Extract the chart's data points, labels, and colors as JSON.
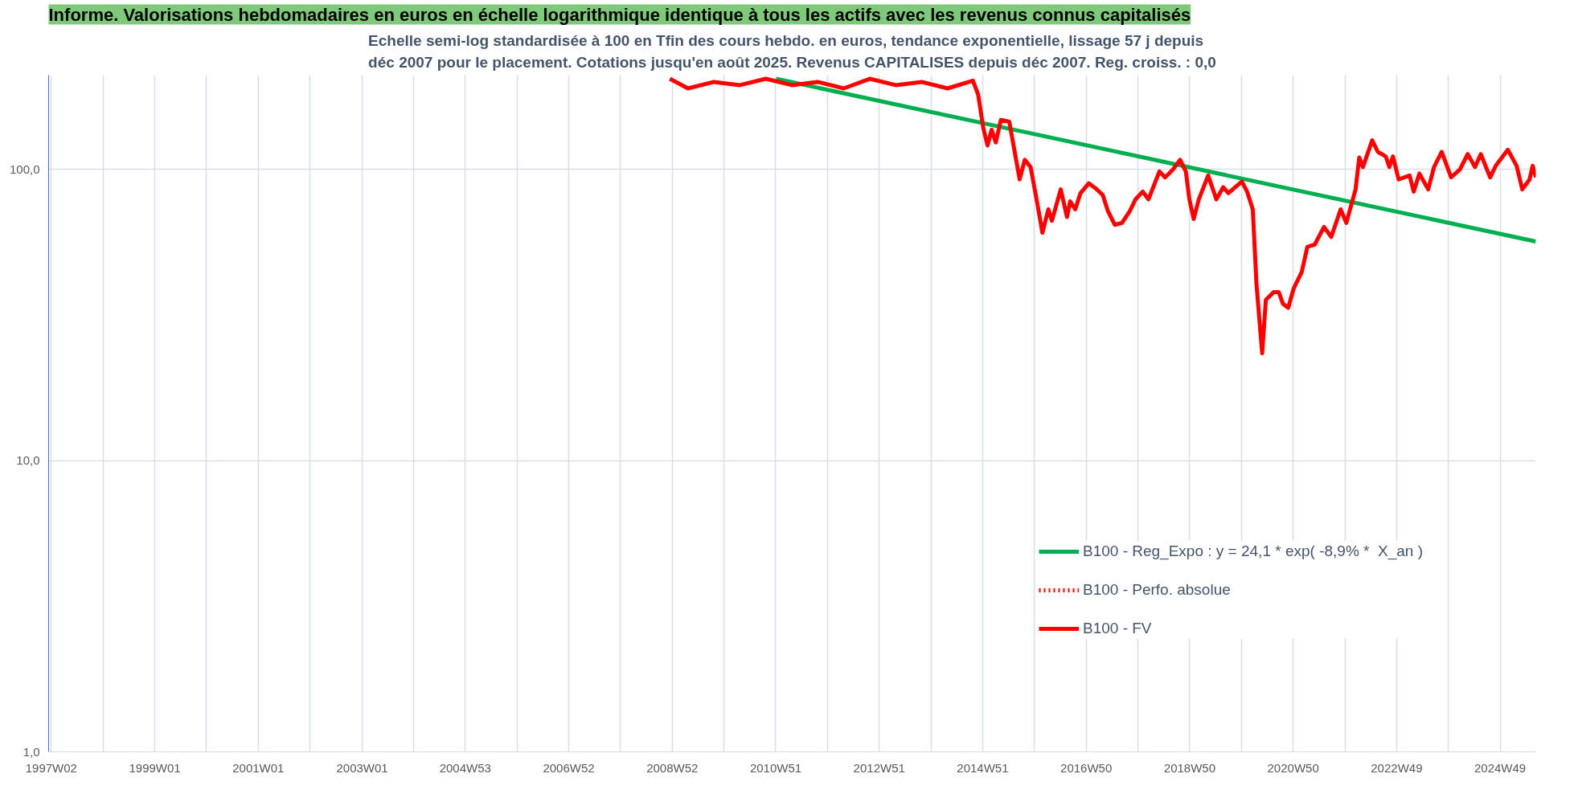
{
  "chart_data": {
    "type": "line",
    "title": "Informe. Valorisations hebdomadaires en euros en échelle logarithmique identique à tous les actifs avec les revenus connus capitalisés",
    "subtitle": "Echelle semi-log standardisée à 100 en Tfin des cours hebdo. en euros, tendance exponentielle, lissage 57 j depuis déc 2007 pour le placement. Cotations jusqu'en août 2025. Revenus CAPITALISES depuis déc 2007. Reg. croiss. : 0,0",
    "log": true,
    "grid": true,
    "legend": "bottom right",
    "xlim": [
      "1996-12-18",
      "2025-08-10"
    ],
    "xticks": [
      {
        "value": "1997-01-06",
        "label": "1997W02"
      },
      {
        "value": "1998-01-05",
        "label": null
      },
      {
        "value": "1999-01-04",
        "label": "1999W01"
      },
      {
        "value": "2000-01-03",
        "label": null
      },
      {
        "value": "2001-01-01",
        "label": "2001W01"
      },
      {
        "value": "2001-12-31",
        "label": null
      },
      {
        "value": "2003-01-02",
        "label": "2003W01"
      },
      {
        "value": "2003-12-29",
        "label": null
      },
      {
        "value": "2004-12-27",
        "label": "2004W53"
      },
      {
        "value": "2005-12-26",
        "label": null
      },
      {
        "value": "2006-12-25",
        "label": "2006W52"
      },
      {
        "value": "2007-12-24",
        "label": null
      },
      {
        "value": "2008-12-22",
        "label": "2008W52"
      },
      {
        "value": "2009-12-21",
        "label": null
      },
      {
        "value": "2010-12-20",
        "label": "2010W51"
      },
      {
        "value": "2011-12-19",
        "label": null
      },
      {
        "value": "2012-12-17",
        "label": "2012W51"
      },
      {
        "value": "2013-12-16",
        "label": null
      },
      {
        "value": "2014-12-15",
        "label": "2014W51"
      },
      {
        "value": "2015-12-14",
        "label": null
      },
      {
        "value": "2016-12-12",
        "label": "2016W50"
      },
      {
        "value": "2017-12-11",
        "label": null
      },
      {
        "value": "2018-12-10",
        "label": "2018W50"
      },
      {
        "value": "2019-12-09",
        "label": null
      },
      {
        "value": "2020-12-07",
        "label": "2020W50"
      },
      {
        "value": "2021-12-06",
        "label": null
      },
      {
        "value": "2022-12-05",
        "label": "2022W49"
      },
      {
        "value": "2023-12-04",
        "label": null
      },
      {
        "value": "2024-12-02",
        "label": "2024W49"
      }
    ],
    "ylim": [
      1,
      211
    ],
    "yticks": [
      {
        "value": 1,
        "label": "1,0"
      },
      {
        "value": 10,
        "label": "10,0"
      },
      {
        "value": 100,
        "label": "100,0"
      }
    ],
    "series": [
      {
        "name": "B100 - Reg_Expo : y = 24,1 * exp( -8,9% *  X_an )",
        "color": "#00b050",
        "line_style": "solid",
        "x": [
          "2010-12-23",
          "2025-08-10"
        ],
        "values": [
          205,
          56.6
        ]
      },
      {
        "name": "B100 - Perfo. absolue",
        "color": "#ff0000",
        "line_style": "dotted"
      },
      {
        "name": "B100 - FV",
        "color": "#ff0000",
        "line_style": "solid",
        "x": [
          "2008-12-05",
          "2009-04-12",
          "2009-10-11",
          "2010-04-12",
          "2010-10-11",
          "2011-04-12",
          "2011-10-11",
          "2012-04-12",
          "2012-10-11",
          "2013-04-12",
          "2013-10-11",
          "2014-04-12",
          "2014-10-07",
          "2014-11-13",
          "2014-12-19",
          "2015-01-18",
          "2015-02-16",
          "2015-03-17",
          "2015-04-22",
          "2015-06-20",
          "2015-09-01",
          "2015-10-07",
          "2015-11-17",
          "2015-12-27",
          "2016-02-08",
          "2016-03-21",
          "2016-04-15",
          "2016-06-16",
          "2016-07-30",
          "2016-08-21",
          "2016-09-26",
          "2016-11-02",
          "2016-12-30",
          "2017-02-19",
          "2017-04-08",
          "2017-05-14",
          "2017-07-01",
          "2017-08-21",
          "2017-10-15",
          "2017-11-24",
          "2018-01-14",
          "2018-02-23",
          "2018-05-11",
          "2018-06-20",
          "2018-08-14",
          "2018-10-04",
          "2018-11-13",
          "2018-12-08",
          "2019-01-07",
          "2019-02-12",
          "2019-04-19",
          "2019-06-16",
          "2019-08-03",
          "2019-09-08",
          "2019-12-12",
          "2020-01-18",
          "2020-02-27",
          "2020-03-24",
          "2020-05-03",
          "2020-05-29",
          "2020-07-23",
          "2020-08-28",
          "2020-09-26",
          "2020-11-02",
          "2020-12-12",
          "2021-02-05",
          "2021-03-17",
          "2021-05-07",
          "2021-07-12",
          "2021-09-01",
          "2021-11-06",
          "2021-12-16",
          "2022-02-19",
          "2022-03-17",
          "2022-04-12",
          "2022-06-16",
          "2022-07-26",
          "2022-09-19",
          "2022-10-15",
          "2022-11-09",
          "2022-12-19",
          "2023-03-06",
          "2023-04-04",
          "2023-05-14",
          "2023-07-15",
          "2023-08-25",
          "2023-10-18",
          "2023-12-23",
          "2024-02-23",
          "2024-04-18",
          "2024-06-08",
          "2024-07-19",
          "2024-09-23",
          "2024-11-01",
          "2025-01-25",
          "2025-03-28",
          "2025-05-07",
          "2025-06-27",
          "2025-07-19",
          "2025-08-10"
        ],
        "values": [
          205,
          190,
          200,
          195,
          205,
          195,
          200,
          190,
          205,
          195,
          200,
          190,
          202,
          181,
          139,
          121,
          137,
          124,
          148,
          146,
          92.5,
          108,
          102,
          80,
          60.7,
          73,
          66.7,
          85.5,
          68.7,
          77.8,
          73,
          83,
          89.7,
          86,
          81.7,
          72,
          64.6,
          65.6,
          72,
          79,
          84,
          79,
          98.5,
          94,
          100,
          108,
          98.5,
          79,
          67.6,
          79,
          95.4,
          79,
          87,
          83,
          91,
          84,
          73,
          40.4,
          23.4,
          35.7,
          37.9,
          37.9,
          34.6,
          33.5,
          39.2,
          44.4,
          54.3,
          55.2,
          63.5,
          58.7,
          73,
          65.6,
          85.5,
          110,
          102,
          126,
          115,
          111,
          102,
          111,
          92.5,
          95.4,
          84,
          96.9,
          85.5,
          102,
          115,
          94,
          100,
          113,
          102,
          113,
          94,
          103,
          117,
          103,
          85.5,
          92.5,
          103,
          94
        ]
      }
    ]
  }
}
